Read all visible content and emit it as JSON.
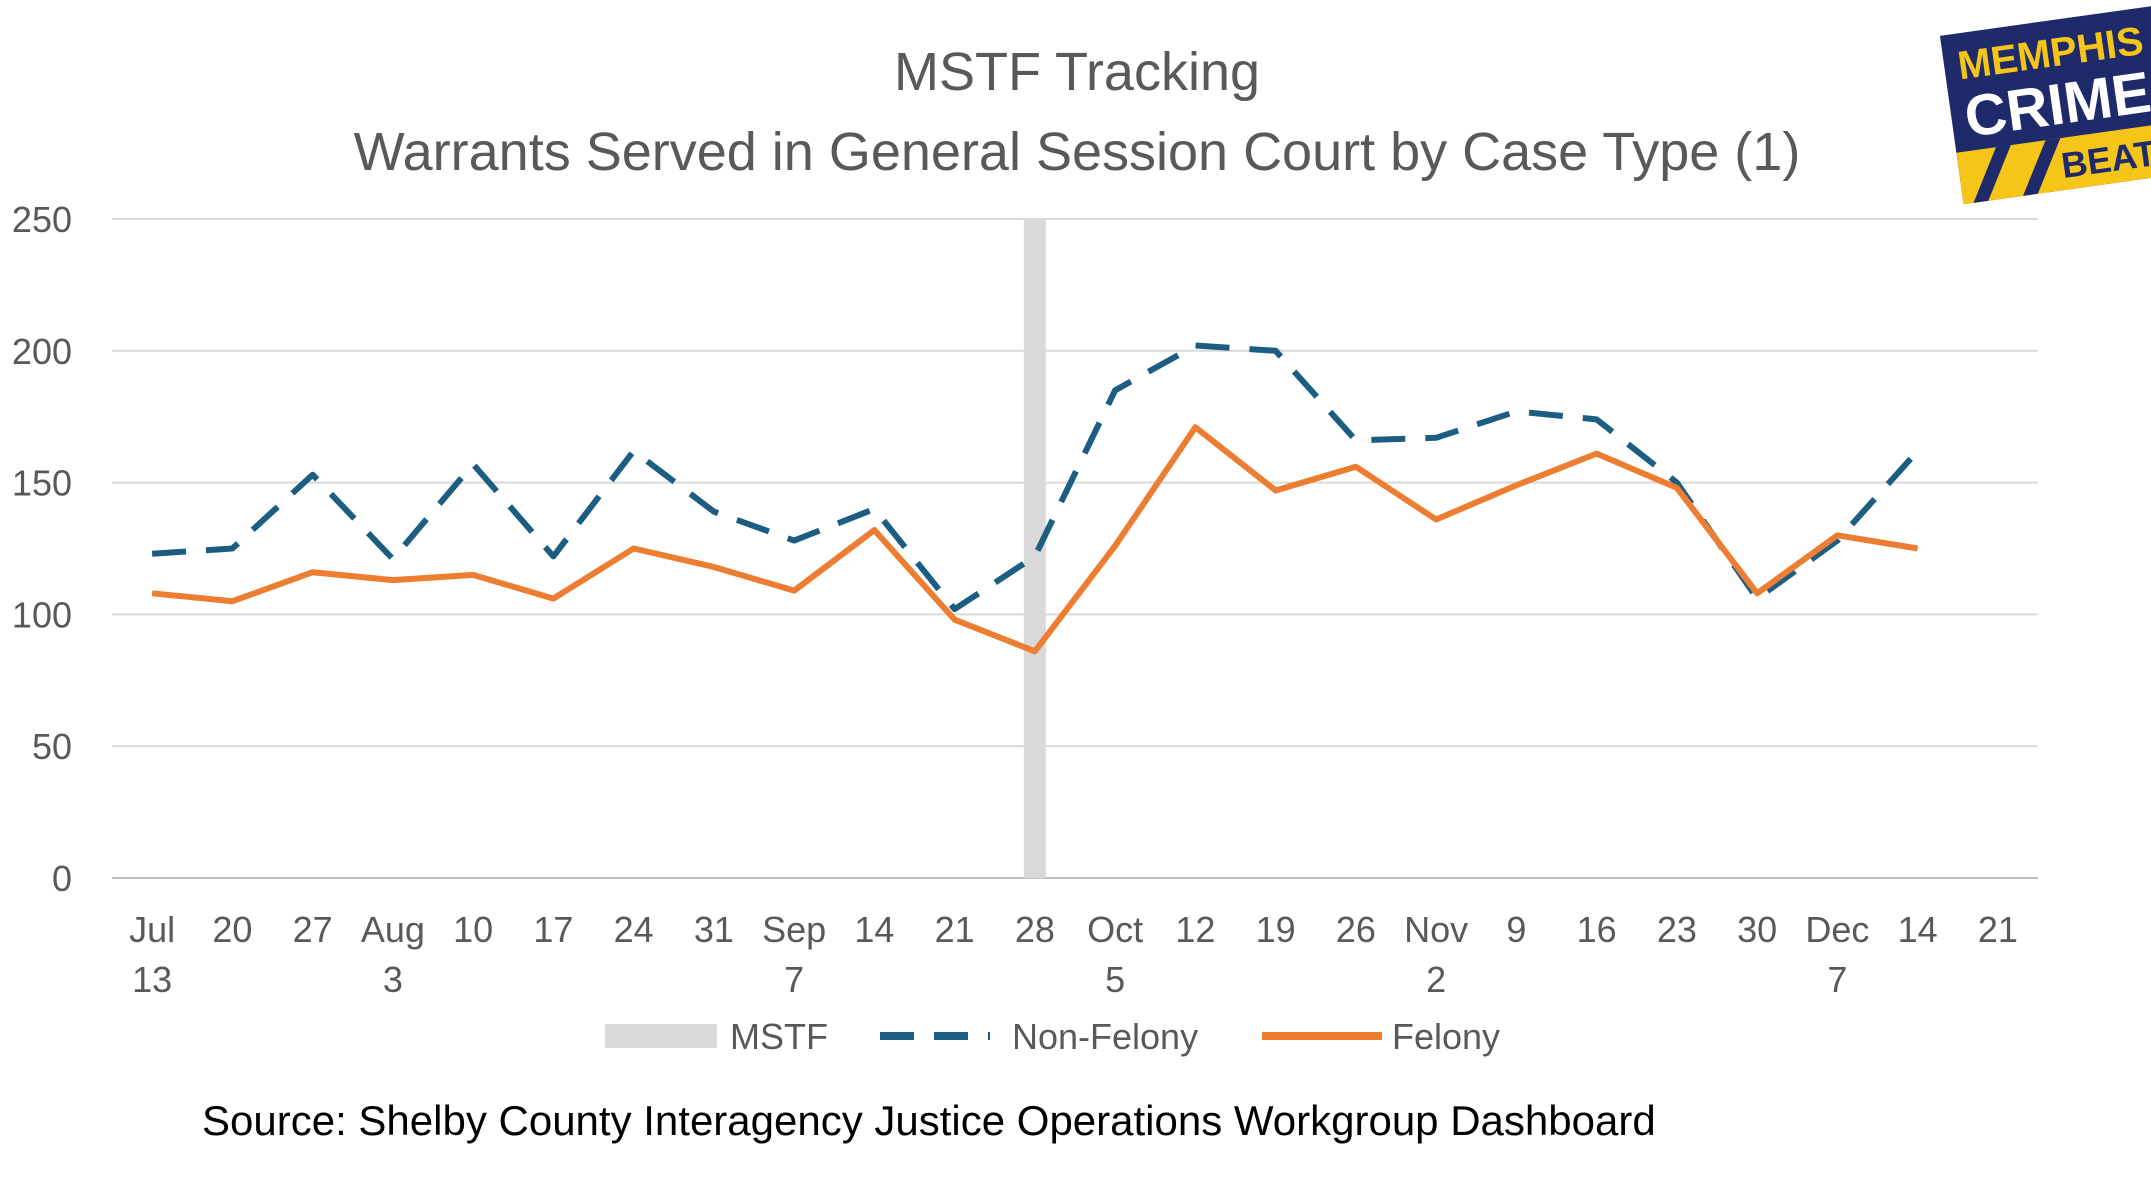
{
  "chart_data": {
    "type": "line",
    "title": "MSTF Tracking",
    "subtitle": "Warrants Served in General Session Court by Case Type (1)",
    "xlabel": "",
    "ylabel": "",
    "ylim": [
      0,
      250
    ],
    "yticks": [
      "0",
      "50",
      "100",
      "150",
      "200",
      "250"
    ],
    "grid": true,
    "legend_position": "bottom",
    "categories": [
      [
        "Jul",
        "13"
      ],
      [
        "20",
        ""
      ],
      [
        "27",
        ""
      ],
      [
        "Aug",
        "3"
      ],
      [
        "10",
        ""
      ],
      [
        "17",
        ""
      ],
      [
        "24",
        ""
      ],
      [
        "31",
        ""
      ],
      [
        "Sep",
        "7"
      ],
      [
        "14",
        ""
      ],
      [
        "21",
        ""
      ],
      [
        "28",
        ""
      ],
      [
        "Oct",
        "5"
      ],
      [
        "12",
        ""
      ],
      [
        "19",
        ""
      ],
      [
        "26",
        ""
      ],
      [
        "Nov",
        "2"
      ],
      [
        "9",
        ""
      ],
      [
        "16",
        ""
      ],
      [
        "23",
        ""
      ],
      [
        "30",
        ""
      ],
      [
        "Dec",
        "7"
      ],
      [
        "14",
        ""
      ],
      [
        "21",
        ""
      ]
    ],
    "marker": {
      "name": "MSTF",
      "category_index": 11,
      "color": "#d9d9d9"
    },
    "series": [
      {
        "name": "Non-Felony",
        "color": "#1b5e82",
        "dash": true,
        "values": [
          123,
          125,
          153,
          121,
          157,
          122,
          162,
          139,
          128,
          140,
          102,
          122,
          185,
          202,
          200,
          166,
          167,
          177,
          174,
          150,
          106,
          128,
          162,
          null
        ]
      },
      {
        "name": "Felony",
        "color": "#ed7d31",
        "dash": false,
        "values": [
          108,
          105,
          116,
          113,
          115,
          106,
          125,
          118,
          109,
          132,
          98,
          86,
          126,
          171,
          147,
          156,
          136,
          149,
          161,
          148,
          108,
          130,
          125,
          null
        ]
      }
    ]
  },
  "source": "Source:  Shelby County Interagency Justice Operations Workgroup Dashboard",
  "logo": {
    "line1": "MEMPHIS",
    "line2": "CRIME",
    "line3": "BEAT",
    "bg": "#1f2a6b",
    "fg": "#f5c518"
  }
}
